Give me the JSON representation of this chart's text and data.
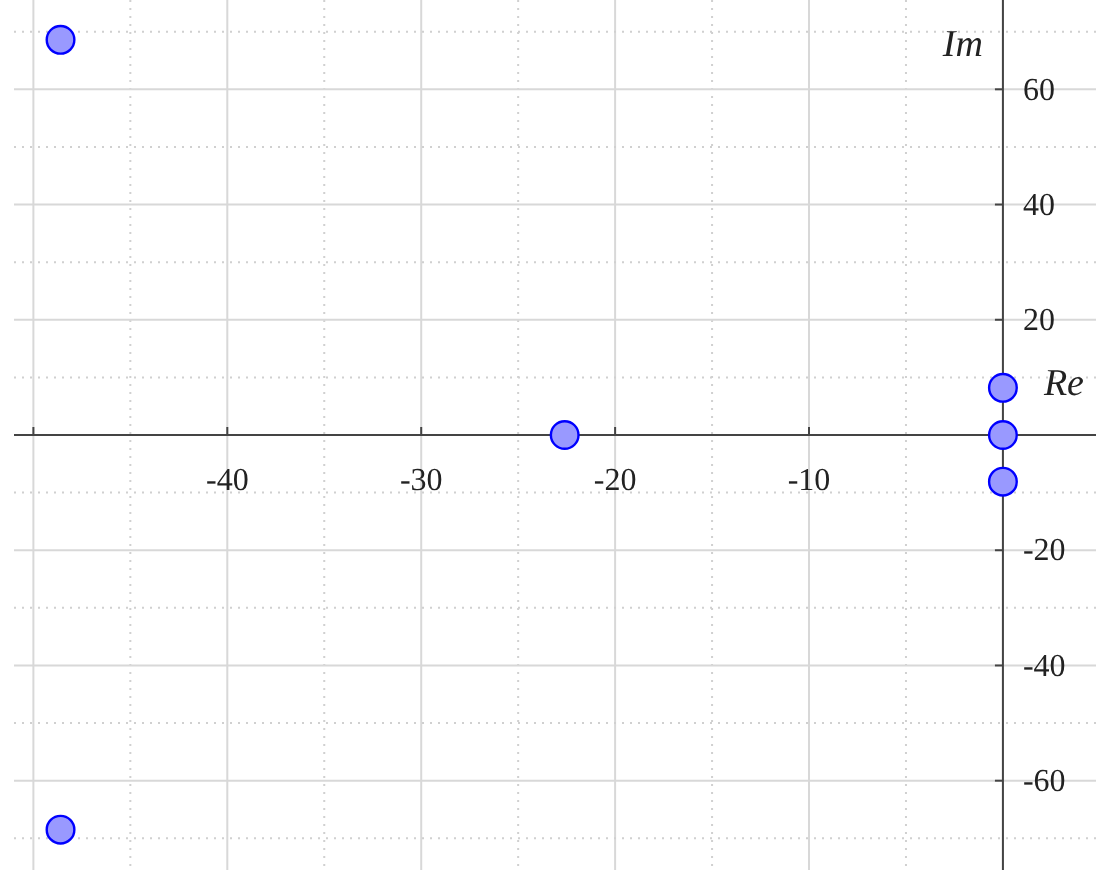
{
  "chart_data": {
    "type": "scatter",
    "xlabel": "Re",
    "ylabel": "Im",
    "x": [
      -48.6,
      -48.6,
      -22.6,
      0,
      0,
      0
    ],
    "values": [
      68.6,
      -68.5,
      0,
      8.2,
      0,
      -8.1
    ],
    "color": "#9999ff",
    "marker": "circle",
    "xlim": [
      -51,
      4.8
    ],
    "ylim": [
      -75.5,
      75.5
    ],
    "xticks": [
      {
        "value": -50,
        "label": null
      },
      -40,
      -30,
      -20,
      -10
    ],
    "yticks": [
      -60,
      -40,
      -20,
      20,
      40,
      60
    ],
    "grid": true
  }
}
